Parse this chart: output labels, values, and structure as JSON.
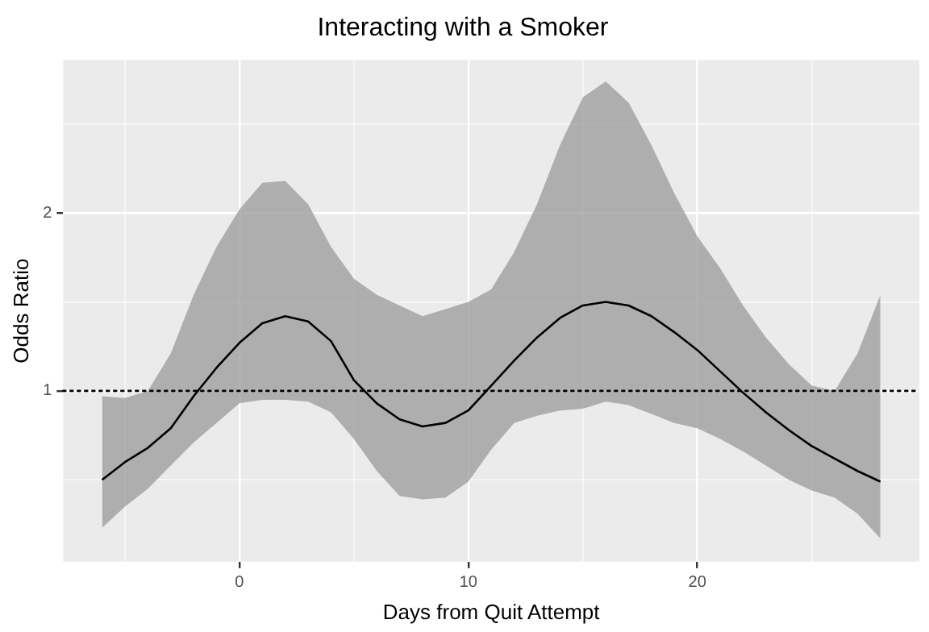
{
  "chart_data": {
    "type": "line",
    "title": "Interacting with a Smoker",
    "xlabel": "Days from Quit Attempt",
    "ylabel": "Odds Ratio",
    "xlim": [
      -7.7,
      29.7
    ],
    "ylim": [
      0.04,
      2.86
    ],
    "xticks": [
      {
        "value": -5,
        "label": null
      },
      0,
      {
        "value": 5,
        "label": null
      },
      10,
      {
        "value": 15,
        "label": null
      },
      20,
      {
        "value": 25,
        "label": null
      }
    ],
    "yticks": [
      {
        "value": 0.5,
        "label": null
      },
      1,
      {
        "value": 1.5,
        "label": null
      },
      2,
      {
        "value": 2.5,
        "label": null
      }
    ],
    "grid": true,
    "legend": false,
    "marker": "none",
    "line_style": "solid",
    "ref_lines": [
      {
        "axis": "y",
        "value": 1,
        "color": "#000000",
        "line_style": "dotted"
      }
    ],
    "series": [
      {
        "color": "#000000",
        "x": [
          -6,
          -5,
          -4,
          -3,
          -2,
          -1,
          0,
          1,
          2,
          3,
          4,
          5,
          6,
          7,
          8,
          9,
          10,
          11,
          12,
          13,
          14,
          15,
          16,
          17,
          18,
          19,
          20,
          21,
          22,
          23,
          24,
          25,
          26,
          27,
          28
        ],
        "values": [
          0.5,
          0.6,
          0.68,
          0.79,
          0.97,
          1.13,
          1.27,
          1.38,
          1.42,
          1.39,
          1.28,
          1.06,
          0.93,
          0.84,
          0.8,
          0.82,
          0.89,
          1.03,
          1.17,
          1.3,
          1.41,
          1.48,
          1.5,
          1.48,
          1.42,
          1.33,
          1.23,
          1.11,
          0.99,
          0.88,
          0.78,
          0.69,
          0.62,
          0.55,
          0.49
        ],
        "lower": [
          0.23,
          0.35,
          0.45,
          0.58,
          0.71,
          0.82,
          0.93,
          0.95,
          0.95,
          0.94,
          0.88,
          0.73,
          0.55,
          0.41,
          0.39,
          0.4,
          0.49,
          0.67,
          0.82,
          0.86,
          0.89,
          0.9,
          0.94,
          0.92,
          0.87,
          0.82,
          0.79,
          0.73,
          0.66,
          0.58,
          0.5,
          0.44,
          0.4,
          0.31,
          0.17
        ],
        "upper": [
          0.97,
          0.96,
          1.0,
          1.21,
          1.54,
          1.81,
          2.02,
          2.17,
          2.18,
          2.05,
          1.81,
          1.63,
          1.54,
          1.48,
          1.42,
          1.46,
          1.5,
          1.57,
          1.78,
          2.05,
          2.38,
          2.65,
          2.74,
          2.62,
          2.38,
          2.11,
          1.87,
          1.69,
          1.48,
          1.3,
          1.15,
          1.03,
          1.0,
          1.21,
          1.54
        ]
      }
    ]
  }
}
